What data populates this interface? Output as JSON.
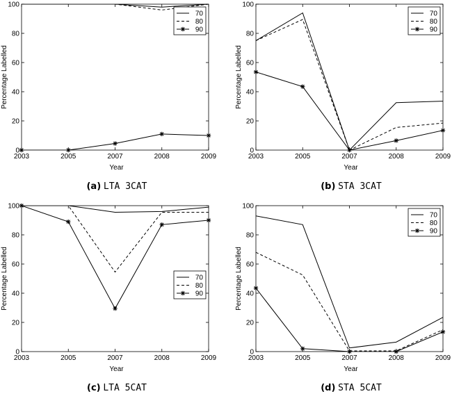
{
  "captions": [
    {
      "label": "(a)",
      "text": "LTA 3CAT"
    },
    {
      "label": "(b)",
      "text": "STA 3CAT"
    },
    {
      "label": "(c)",
      "text": "LTA 5CAT"
    },
    {
      "label": "(d)",
      "text": "STA 5CAT"
    }
  ],
  "chart_data": [
    {
      "type": "line",
      "title": "",
      "xlabel": "Year",
      "ylabel": "Percentage Labelled",
      "categories": [
        "2003",
        "2005",
        "2007",
        "2008",
        "2009"
      ],
      "ylim": [
        0,
        100
      ],
      "yticks": [
        0,
        20,
        40,
        60,
        80,
        100
      ],
      "legend_position": "top-right",
      "series": [
        {
          "name": "70",
          "style": "solid",
          "values": [
            100,
            100,
            100,
            98,
            100
          ]
        },
        {
          "name": "80",
          "style": "dashed",
          "values": [
            100,
            100,
            100,
            96,
            100
          ]
        },
        {
          "name": "90",
          "style": "solid-star",
          "values": [
            0,
            0,
            4.5,
            11,
            10
          ]
        }
      ]
    },
    {
      "type": "line",
      "title": "",
      "xlabel": "Year",
      "ylabel": "Percentage Labelled",
      "categories": [
        "2003",
        "2005",
        "2007",
        "2008",
        "2009"
      ],
      "ylim": [
        0,
        100
      ],
      "yticks": [
        0,
        20,
        40,
        60,
        80,
        100
      ],
      "legend_position": "top-right",
      "series": [
        {
          "name": "70",
          "style": "solid",
          "values": [
            75,
            94,
            0,
            32.5,
            33.5
          ]
        },
        {
          "name": "80",
          "style": "dashed",
          "values": [
            75,
            89.5,
            0,
            15.5,
            18.5
          ]
        },
        {
          "name": "90",
          "style": "solid-star",
          "values": [
            53.5,
            43.5,
            0,
            6.5,
            13.5
          ]
        }
      ]
    },
    {
      "type": "line",
      "title": "",
      "xlabel": "Year",
      "ylabel": "Percentage Labelled",
      "categories": [
        "2003",
        "2005",
        "2007",
        "2008",
        "2009"
      ],
      "ylim": [
        0,
        100
      ],
      "yticks": [
        0,
        20,
        40,
        60,
        80,
        100
      ],
      "legend_position": "center-right",
      "series": [
        {
          "name": "70",
          "style": "solid",
          "values": [
            100,
            100,
            95.5,
            96,
            99
          ]
        },
        {
          "name": "80",
          "style": "dashed",
          "values": [
            100,
            100,
            54.5,
            95.5,
            95.5
          ]
        },
        {
          "name": "90",
          "style": "solid-star",
          "values": [
            100,
            89,
            29.5,
            87,
            90
          ]
        }
      ]
    },
    {
      "type": "line",
      "title": "",
      "xlabel": "Year",
      "ylabel": "Percentage Labelled",
      "categories": [
        "2003",
        "2005",
        "2007",
        "2008",
        "2009"
      ],
      "ylim": [
        0,
        100
      ],
      "yticks": [
        0,
        20,
        40,
        60,
        80,
        100
      ],
      "legend_position": "top-right",
      "series": [
        {
          "name": "70",
          "style": "solid",
          "values": [
            93,
            87,
            2.5,
            6.5,
            23.5
          ]
        },
        {
          "name": "80",
          "style": "dashed",
          "values": [
            68,
            52.5,
            0.5,
            0.5,
            15
          ]
        },
        {
          "name": "90",
          "style": "solid-star",
          "values": [
            43.5,
            2,
            0,
            0,
            13.5
          ]
        }
      ]
    }
  ]
}
